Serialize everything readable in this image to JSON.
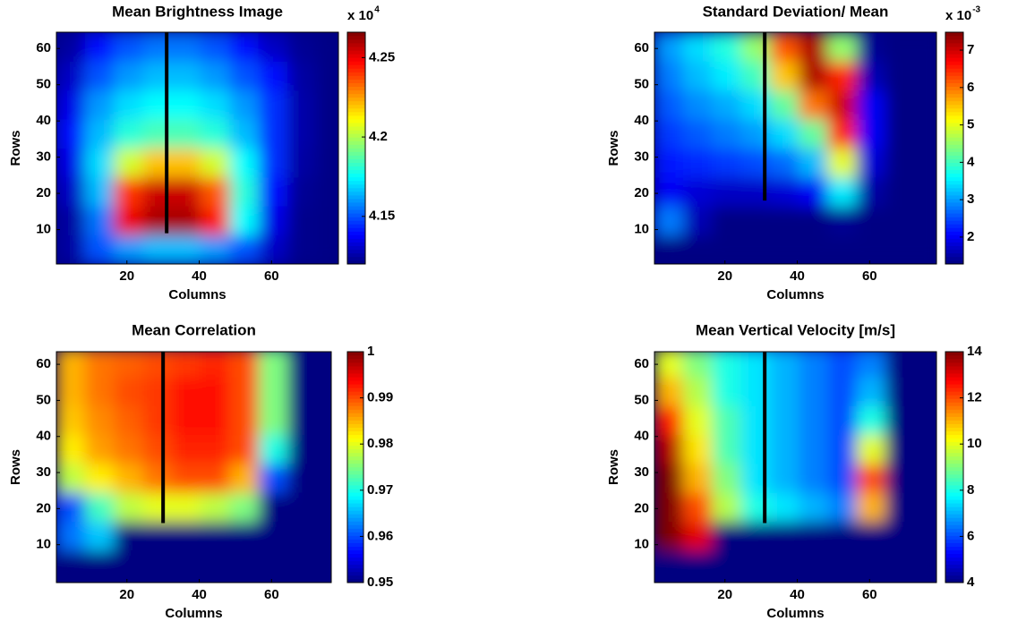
{
  "chart_data": [
    {
      "type": "heatmap",
      "title": "Mean Brightness Image",
      "xlabel": "Columns",
      "ylabel": "Rows",
      "colormap": "jet",
      "colorbar_multiplier": "x 10",
      "colorbar_exponent": "4",
      "xlim": [
        0.5,
        78.5
      ],
      "ylim": [
        0.5,
        64.5
      ],
      "xticks": [
        20,
        40,
        60
      ],
      "yticks": [
        10,
        20,
        30,
        40,
        50,
        60
      ],
      "zlim": [
        41200,
        42660
      ],
      "zticks": [
        {
          "value": 41500,
          "label": "4.15"
        },
        {
          "value": 42000,
          "label": "4.2"
        },
        {
          "value": 42500,
          "label": "4.25"
        }
      ],
      "line_x": 31,
      "line_ymin": 9,
      "line_color": "#000000",
      "x": [
        4.5,
        12.5,
        20.5,
        28.5,
        36.5,
        44.5,
        52.5,
        60.5,
        68.5,
        76.5
      ],
      "y": [
        4.5,
        12.5,
        20.5,
        28.5,
        36.5,
        44.5,
        52.5,
        60.5
      ],
      "z": [
        [
          41250,
          41500,
          41600,
          41650,
          41650,
          41600,
          41500,
          41300,
          41220,
          41210
        ],
        [
          41250,
          41550,
          42500,
          42600,
          42600,
          42450,
          41750,
          41350,
          41220,
          41210
        ],
        [
          41300,
          41650,
          42400,
          42550,
          42550,
          42350,
          41800,
          41400,
          41230,
          41210
        ],
        [
          41350,
          41700,
          42050,
          42200,
          42200,
          42050,
          41750,
          41450,
          41250,
          41210
        ],
        [
          41400,
          41650,
          41800,
          41850,
          41850,
          41800,
          41650,
          41450,
          41260,
          41210
        ],
        [
          41350,
          41600,
          41700,
          41750,
          41750,
          41700,
          41600,
          41450,
          41260,
          41210
        ],
        [
          41300,
          41500,
          41600,
          41650,
          41650,
          41600,
          41500,
          41400,
          41250,
          41210
        ],
        [
          41250,
          41400,
          41500,
          41550,
          41550,
          41500,
          41400,
          41300,
          41230,
          41210
        ]
      ]
    },
    {
      "type": "heatmap",
      "title": "Standard Deviation/ Mean",
      "xlabel": "Columns",
      "ylabel": "Rows",
      "colormap": "jet",
      "colorbar_multiplier": "x 10",
      "colorbar_exponent": "-3",
      "xlim": [
        0.5,
        78.5
      ],
      "ylim": [
        0.5,
        64.5
      ],
      "xticks": [
        20,
        40,
        60
      ],
      "yticks": [
        10,
        20,
        30,
        40,
        50,
        60
      ],
      "zlim": [
        0.00128,
        0.00748
      ],
      "zticks": [
        {
          "value": 0.002,
          "label": "2"
        },
        {
          "value": 0.003,
          "label": "3"
        },
        {
          "value": 0.004,
          "label": "4"
        },
        {
          "value": 0.005,
          "label": "5"
        },
        {
          "value": 0.006,
          "label": "6"
        },
        {
          "value": 0.007,
          "label": "7"
        }
      ],
      "line_x": 31,
      "line_ymin": 18,
      "line_color": "#000000",
      "x": [
        4.5,
        12.5,
        20.5,
        28.5,
        36.5,
        44.5,
        52.5,
        60.5,
        68.5,
        76.5
      ],
      "y": [
        4.5,
        12.5,
        20.5,
        28.5,
        36.5,
        44.5,
        52.5,
        60.5
      ],
      "z": [
        [
          0.0013,
          0.0013,
          0.0013,
          0.0013,
          0.0013,
          0.0013,
          0.0013,
          0.0013,
          0.0013,
          0.0013
        ],
        [
          0.0028,
          0.0016,
          0.0013,
          0.0013,
          0.0013,
          0.0013,
          0.0014,
          0.0013,
          0.0013,
          0.0013
        ],
        [
          0.002,
          0.0018,
          0.0017,
          0.0017,
          0.0018,
          0.002,
          0.0035,
          0.0015,
          0.0013,
          0.0013
        ],
        [
          0.0022,
          0.0023,
          0.0024,
          0.0025,
          0.0027,
          0.0032,
          0.005,
          0.0018,
          0.0013,
          0.0013
        ],
        [
          0.0024,
          0.0026,
          0.0028,
          0.003,
          0.0034,
          0.0042,
          0.0065,
          0.002,
          0.0013,
          0.0013
        ],
        [
          0.0026,
          0.0029,
          0.0031,
          0.0034,
          0.0042,
          0.006,
          0.007,
          0.002,
          0.0013,
          0.0013
        ],
        [
          0.0028,
          0.0032,
          0.0035,
          0.004,
          0.0055,
          0.0072,
          0.0065,
          0.0016,
          0.0013,
          0.0013
        ],
        [
          0.003,
          0.0034,
          0.0038,
          0.0045,
          0.0062,
          0.0072,
          0.0045,
          0.0014,
          0.0013,
          0.0013
        ]
      ]
    },
    {
      "type": "heatmap",
      "title": "Mean Correlation",
      "xlabel": "Columns",
      "ylabel": "Rows",
      "colormap": "jet",
      "xlim": [
        0.5,
        76.5
      ],
      "ylim": [
        -0.5,
        63.5
      ],
      "xticks": [
        20,
        40,
        60
      ],
      "yticks": [
        10,
        20,
        30,
        40,
        50,
        60
      ],
      "zlim": [
        0.95,
        1
      ],
      "zticks": [
        0.95,
        0.96,
        0.97,
        0.98,
        0.99,
        1
      ],
      "line_x": 30,
      "line_ymin": 16,
      "line_color": "#000000",
      "x": [
        4.5,
        12.5,
        20.5,
        28.5,
        36.5,
        44.5,
        52.5,
        60.5,
        68.5,
        76.5
      ],
      "y": [
        4.5,
        12.5,
        20.5,
        28.5,
        36.5,
        44.5,
        52.5,
        60.5
      ],
      "z": [
        [
          0.95,
          0.95,
          0.95,
          0.95,
          0.95,
          0.95,
          0.95,
          0.95,
          0.95,
          0.95
        ],
        [
          0.962,
          0.966,
          0.95,
          0.95,
          0.95,
          0.95,
          0.95,
          0.95,
          0.95,
          0.95
        ],
        [
          0.96,
          0.972,
          0.978,
          0.98,
          0.98,
          0.978,
          0.975,
          0.95,
          0.95,
          0.95
        ],
        [
          0.978,
          0.982,
          0.985,
          0.988,
          0.99,
          0.99,
          0.985,
          0.96,
          0.95,
          0.95
        ],
        [
          0.982,
          0.986,
          0.988,
          0.99,
          0.992,
          0.992,
          0.99,
          0.97,
          0.95,
          0.95
        ],
        [
          0.984,
          0.987,
          0.989,
          0.991,
          0.993,
          0.993,
          0.99,
          0.975,
          0.95,
          0.95
        ],
        [
          0.985,
          0.988,
          0.99,
          0.991,
          0.993,
          0.993,
          0.99,
          0.975,
          0.95,
          0.95
        ],
        [
          0.985,
          0.988,
          0.989,
          0.99,
          0.991,
          0.992,
          0.99,
          0.975,
          0.95,
          0.95
        ]
      ]
    },
    {
      "type": "heatmap",
      "title": "Mean Vertical Velocity [m/s]",
      "xlabel": "Columns",
      "ylabel": "Rows",
      "colormap": "jet",
      "xlim": [
        0.5,
        78.5
      ],
      "ylim": [
        -0.5,
        63.5
      ],
      "xticks": [
        20,
        40,
        60
      ],
      "yticks": [
        10,
        20,
        30,
        40,
        50,
        60
      ],
      "zlim": [
        4,
        14
      ],
      "zticks": [
        4,
        6,
        8,
        10,
        12,
        14
      ],
      "line_x": 31,
      "line_ymin": 16,
      "line_color": "#000000",
      "x": [
        4.5,
        12.5,
        20.5,
        28.5,
        36.5,
        44.5,
        52.5,
        60.5,
        68.5,
        76.5
      ],
      "y": [
        4.5,
        12.5,
        20.5,
        28.5,
        36.5,
        44.5,
        52.5,
        60.5
      ],
      "z": [
        [
          4,
          4,
          4,
          4,
          4,
          4,
          4,
          4,
          4,
          4
        ],
        [
          14,
          13,
          4,
          4,
          4,
          4,
          4,
          4,
          4,
          4
        ],
        [
          14,
          12,
          9.5,
          8,
          7.5,
          7,
          6.5,
          11,
          4,
          4
        ],
        [
          14,
          11,
          9,
          7.5,
          7,
          6.5,
          6,
          12,
          4,
          4
        ],
        [
          13.5,
          10.5,
          8.5,
          7.5,
          7,
          6.5,
          6,
          10,
          4,
          4
        ],
        [
          12.5,
          10,
          8.5,
          7.5,
          7,
          6.5,
          6,
          8,
          4,
          4
        ],
        [
          11,
          9.5,
          8,
          7.5,
          7,
          6.5,
          6,
          7,
          4,
          4
        ],
        [
          10,
          9,
          8,
          7.5,
          7,
          6.5,
          6,
          6.5,
          4,
          4
        ]
      ]
    }
  ]
}
